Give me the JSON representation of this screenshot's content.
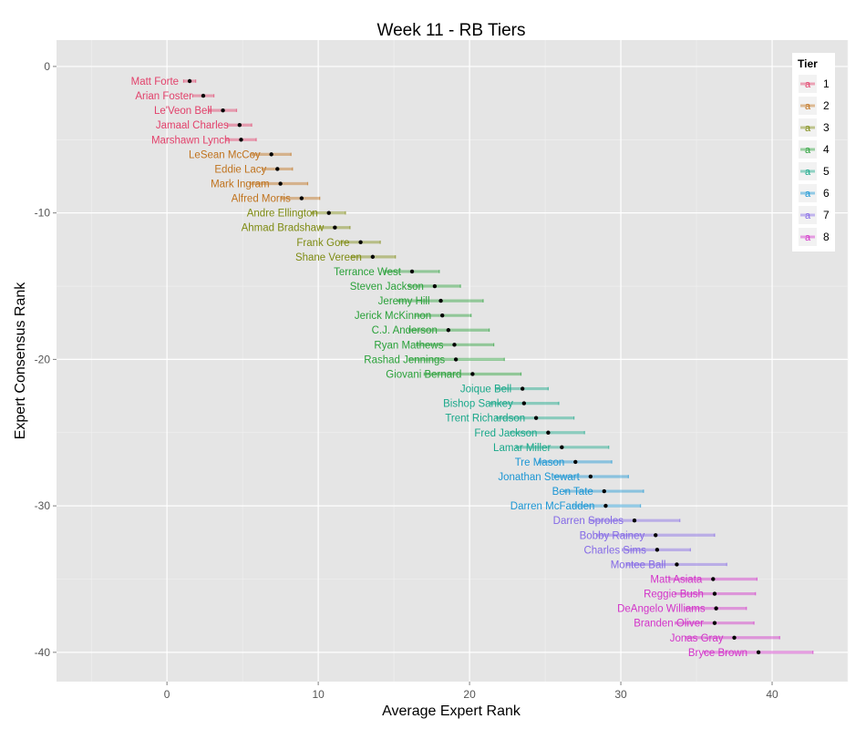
{
  "chart_data": {
    "type": "errorbar",
    "title": "Week 11 - RB Tiers",
    "xlabel": "Average Expert Rank",
    "ylabel": "Expert Consensus Rank",
    "xlim": [
      -7.3,
      45
    ],
    "ylim": [
      -42,
      1.8
    ],
    "x_ticks": [
      0,
      10,
      20,
      30,
      40
    ],
    "y_ticks": [
      0,
      -10,
      -20,
      -30,
      -40
    ],
    "x_tick_labels": [
      "0",
      "10",
      "20",
      "30",
      "40"
    ],
    "y_tick_labels": [
      "0",
      "-10",
      "-20",
      "-30",
      "-40"
    ],
    "grid": true,
    "legend": {
      "title": "Tier",
      "position": "right-top",
      "key_glyph": "a",
      "entries": [
        "1",
        "2",
        "3",
        "4",
        "5",
        "6",
        "7",
        "8"
      ]
    },
    "tier_colors": {
      "1": "#e2416b",
      "2": "#c0731e",
      "3": "#7e8b12",
      "4": "#2aa13a",
      "5": "#19a88a",
      "6": "#1b96d4",
      "7": "#8469e6",
      "8": "#d333c9"
    },
    "points": [
      {
        "name": "Matt Forte",
        "tier": 1,
        "rank": -1,
        "avg": 1.5,
        "lo": 1.1,
        "hi": 1.9
      },
      {
        "name": "Arian Foster",
        "tier": 1,
        "rank": -2,
        "avg": 2.4,
        "lo": 1.7,
        "hi": 3.1
      },
      {
        "name": "Le'Veon Bell",
        "tier": 1,
        "rank": -3,
        "avg": 3.7,
        "lo": 2.8,
        "hi": 4.6
      },
      {
        "name": "Jamaal Charles",
        "tier": 1,
        "rank": -4,
        "avg": 4.8,
        "lo": 4.0,
        "hi": 5.6
      },
      {
        "name": "Marshawn Lynch",
        "tier": 1,
        "rank": -5,
        "avg": 4.9,
        "lo": 3.9,
        "hi": 5.9
      },
      {
        "name": "LeSean McCoy",
        "tier": 2,
        "rank": -6,
        "avg": 6.9,
        "lo": 5.6,
        "hi": 8.2
      },
      {
        "name": "Eddie Lacy",
        "tier": 2,
        "rank": -7,
        "avg": 7.3,
        "lo": 6.3,
        "hi": 8.3
      },
      {
        "name": "Mark Ingram",
        "tier": 2,
        "rank": -8,
        "avg": 7.5,
        "lo": 5.5,
        "hi": 9.3
      },
      {
        "name": "Alfred Morris",
        "tier": 2,
        "rank": -9,
        "avg": 8.9,
        "lo": 7.6,
        "hi": 10.1
      },
      {
        "name": "Andre Ellington",
        "tier": 3,
        "rank": -10,
        "avg": 10.7,
        "lo": 9.6,
        "hi": 11.8
      },
      {
        "name": "Ahmad Bradshaw",
        "tier": 3,
        "rank": -11,
        "avg": 11.1,
        "lo": 10.1,
        "hi": 12.1
      },
      {
        "name": "Frank Gore",
        "tier": 3,
        "rank": -12,
        "avg": 12.8,
        "lo": 11.5,
        "hi": 14.1
      },
      {
        "name": "Shane Vereen",
        "tier": 3,
        "rank": -13,
        "avg": 13.6,
        "lo": 12.2,
        "hi": 15.1
      },
      {
        "name": "Terrance West",
        "tier": 4,
        "rank": -14,
        "avg": 16.2,
        "lo": 14.4,
        "hi": 18.0
      },
      {
        "name": "Steven Jackson",
        "tier": 4,
        "rank": -15,
        "avg": 17.7,
        "lo": 16.0,
        "hi": 19.4
      },
      {
        "name": "Jeremy Hill",
        "tier": 4,
        "rank": -16,
        "avg": 18.1,
        "lo": 15.3,
        "hi": 20.9
      },
      {
        "name": "Jerick McKinnon",
        "tier": 4,
        "rank": -17,
        "avg": 18.2,
        "lo": 16.4,
        "hi": 20.1
      },
      {
        "name": "C.J. Anderson",
        "tier": 4,
        "rank": -18,
        "avg": 18.6,
        "lo": 16.0,
        "hi": 21.3
      },
      {
        "name": "Ryan Mathews",
        "tier": 4,
        "rank": -19,
        "avg": 19.0,
        "lo": 16.5,
        "hi": 21.6
      },
      {
        "name": "Rashad Jennings",
        "tier": 4,
        "rank": -20,
        "avg": 19.1,
        "lo": 16.0,
        "hi": 22.3
      },
      {
        "name": "Giovani Bernard",
        "tier": 4,
        "rank": -21,
        "avg": 20.2,
        "lo": 17.0,
        "hi": 23.4
      },
      {
        "name": "Joique Bell",
        "tier": 5,
        "rank": -22,
        "avg": 23.5,
        "lo": 21.8,
        "hi": 25.2
      },
      {
        "name": "Bishop Sankey",
        "tier": 5,
        "rank": -23,
        "avg": 23.6,
        "lo": 21.4,
        "hi": 25.9
      },
      {
        "name": "Trent Richardson",
        "tier": 5,
        "rank": -24,
        "avg": 24.4,
        "lo": 21.8,
        "hi": 26.9
      },
      {
        "name": "Fred Jackson",
        "tier": 5,
        "rank": -25,
        "avg": 25.2,
        "lo": 22.7,
        "hi": 27.6
      },
      {
        "name": "Lamar Miller",
        "tier": 5,
        "rank": -26,
        "avg": 26.1,
        "lo": 23.1,
        "hi": 29.2
      },
      {
        "name": "Tre Mason",
        "tier": 6,
        "rank": -27,
        "avg": 27.0,
        "lo": 24.6,
        "hi": 29.4
      },
      {
        "name": "Jonathan Stewart",
        "tier": 6,
        "rank": -28,
        "avg": 28.0,
        "lo": 25.6,
        "hi": 30.5
      },
      {
        "name": "Ben Tate",
        "tier": 6,
        "rank": -29,
        "avg": 28.9,
        "lo": 26.3,
        "hi": 31.5
      },
      {
        "name": "Darren McFadden",
        "tier": 6,
        "rank": -30,
        "avg": 29.0,
        "lo": 26.8,
        "hi": 31.3
      },
      {
        "name": "Darren Sproles",
        "tier": 7,
        "rank": -31,
        "avg": 30.9,
        "lo": 27.9,
        "hi": 33.9
      },
      {
        "name": "Bobby Rainey",
        "tier": 7,
        "rank": -32,
        "avg": 32.3,
        "lo": 28.4,
        "hi": 36.2
      },
      {
        "name": "Charles Sims",
        "tier": 7,
        "rank": -33,
        "avg": 32.4,
        "lo": 30.1,
        "hi": 34.6
      },
      {
        "name": "Montee Ball",
        "tier": 7,
        "rank": -34,
        "avg": 33.7,
        "lo": 30.4,
        "hi": 37.0
      },
      {
        "name": "Matt Asiata",
        "tier": 8,
        "rank": -35,
        "avg": 36.1,
        "lo": 33.2,
        "hi": 39.0
      },
      {
        "name": "Reggie Bush",
        "tier": 8,
        "rank": -36,
        "avg": 36.2,
        "lo": 33.6,
        "hi": 38.9
      },
      {
        "name": "DeAngelo Williams",
        "tier": 8,
        "rank": -37,
        "avg": 36.3,
        "lo": 34.3,
        "hi": 38.3
      },
      {
        "name": "Branden Oliver",
        "tier": 8,
        "rank": -38,
        "avg": 36.2,
        "lo": 33.6,
        "hi": 38.8
      },
      {
        "name": "Jonas Gray",
        "tier": 8,
        "rank": -39,
        "avg": 37.5,
        "lo": 34.3,
        "hi": 40.5
      },
      {
        "name": "Bryce Brown",
        "tier": 8,
        "rank": -40,
        "avg": 39.1,
        "lo": 35.5,
        "hi": 42.7
      }
    ]
  }
}
